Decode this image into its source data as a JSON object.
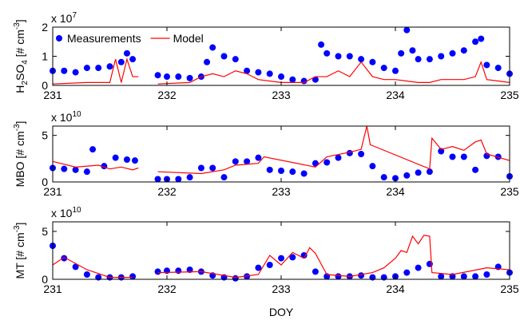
{
  "chart_data": [
    {
      "type": "line",
      "multiplier": {
        "base": "x 10",
        "exponent": "7"
      },
      "ylabel": [
        {
          "text": "H"
        },
        {
          "text": "2",
          "script": "sub"
        },
        {
          "text": "SO"
        },
        {
          "text": "4",
          "script": "sub"
        },
        {
          "text": " [# cm"
        },
        {
          "text": "-3",
          "script": "super"
        },
        {
          "text": "]"
        }
      ],
      "xlim": [
        231,
        235
      ],
      "xticks": [
        231,
        232,
        233,
        234,
        235
      ],
      "ylim": [
        0,
        2
      ],
      "yticks": [
        0,
        1,
        2
      ],
      "legend": "upper left",
      "series": [
        {
          "name": "Measurements",
          "color": "#0000ff",
          "style": "marker",
          "x": [
            231.0,
            231.1,
            231.2,
            231.3,
            231.4,
            231.5,
            231.6,
            231.65,
            231.7,
            231.92,
            232.0,
            232.1,
            232.2,
            232.3,
            232.35,
            232.4,
            232.5,
            232.6,
            232.7,
            232.8,
            232.9,
            233.0,
            233.1,
            233.2,
            233.3,
            233.35,
            233.4,
            233.5,
            233.6,
            233.7,
            233.8,
            233.9,
            234.0,
            234.05,
            234.1,
            234.15,
            234.2,
            234.3,
            234.4,
            234.5,
            234.6,
            234.7,
            234.75,
            234.8,
            234.9,
            235.0
          ],
          "values": [
            0.5,
            0.5,
            0.45,
            0.6,
            0.6,
            0.65,
            0.8,
            1.1,
            0.9,
            0.35,
            0.3,
            0.3,
            0.25,
            0.3,
            0.8,
            1.3,
            1.0,
            0.9,
            0.5,
            0.45,
            0.4,
            0.3,
            0.2,
            0.15,
            0.2,
            1.4,
            1.1,
            1.0,
            1.0,
            0.9,
            0.8,
            0.6,
            0.5,
            1.1,
            1.9,
            1.2,
            0.9,
            0.9,
            1.0,
            1.1,
            1.2,
            1.5,
            1.6,
            0.7,
            0.6,
            0.4
          ]
        },
        {
          "name": "Model",
          "color": "#ff0000",
          "style": "line",
          "x": [
            231.0,
            231.3,
            231.5,
            231.55,
            231.6,
            231.65,
            231.7,
            231.75,
            231.85,
            231.92,
            232.2,
            232.3,
            232.4,
            232.5,
            232.6,
            232.7,
            232.8,
            233.0,
            233.2,
            233.3,
            233.4,
            233.5,
            233.6,
            233.7,
            233.8,
            233.9,
            234.0,
            234.2,
            234.3,
            234.4,
            234.6,
            234.7,
            234.75,
            234.8,
            234.9,
            235.0
          ],
          "values": [
            0.05,
            0.1,
            0.1,
            0.9,
            0.1,
            0.9,
            0.3,
            0.3,
            null,
            0.05,
            0.1,
            0.3,
            0.4,
            0.3,
            0.5,
            0.4,
            0.2,
            0.1,
            0.1,
            0.3,
            0.3,
            0.5,
            0.3,
            0.8,
            0.3,
            0.2,
            0.2,
            0.1,
            0.1,
            0.2,
            0.2,
            0.3,
            0.8,
            0.2,
            0.15,
            0.1
          ]
        }
      ]
    },
    {
      "type": "line",
      "multiplier": {
        "base": "x 10",
        "exponent": "10"
      },
      "ylabel": [
        {
          "text": "MBO [# cm"
        },
        {
          "text": "-3",
          "script": "super"
        },
        {
          "text": "]"
        }
      ],
      "xlim": [
        231,
        235
      ],
      "xticks": [
        231,
        232,
        233,
        234,
        235
      ],
      "ylim": [
        0,
        6
      ],
      "yticks": [
        0,
        5
      ],
      "series": [
        {
          "color": "#0000ff",
          "style": "marker",
          "x": [
            231.0,
            231.1,
            231.2,
            231.3,
            231.35,
            231.45,
            231.55,
            231.65,
            231.72,
            231.92,
            232.0,
            232.1,
            232.2,
            232.3,
            232.4,
            232.5,
            232.6,
            232.7,
            232.8,
            232.9,
            233.0,
            233.1,
            233.2,
            233.3,
            233.4,
            233.5,
            233.6,
            233.7,
            233.8,
            233.9,
            234.0,
            234.1,
            234.2,
            234.3,
            234.4,
            234.5,
            234.6,
            234.7,
            234.8,
            234.9,
            235.0
          ],
          "values": [
            1.5,
            1.4,
            1.3,
            1.1,
            3.5,
            1.7,
            2.6,
            2.4,
            2.3,
            0.3,
            0.3,
            0.3,
            0.5,
            1.5,
            1.5,
            0.5,
            2.2,
            2.2,
            2.6,
            1.3,
            1.2,
            1.1,
            0.9,
            2.0,
            2.1,
            2.6,
            3.1,
            3.0,
            1.7,
            0.5,
            0.4,
            0.7,
            1.0,
            1.1,
            3.3,
            2.7,
            2.7,
            1.3,
            2.8,
            2.7,
            0.6
          ]
        },
        {
          "color": "#ff0000",
          "style": "line",
          "x": [
            231.0,
            231.2,
            231.4,
            231.5,
            231.6,
            231.7,
            231.75,
            231.85,
            231.92,
            232.3,
            232.5,
            232.6,
            232.8,
            232.85,
            233.3,
            233.4,
            233.6,
            233.7,
            233.75,
            233.78,
            233.8,
            234.3,
            234.32,
            234.4,
            234.5,
            234.6,
            234.7,
            234.75,
            234.8,
            235.0
          ],
          "values": [
            2.2,
            1.6,
            1.8,
            1.4,
            1.6,
            1.3,
            1.5,
            null,
            1.1,
            0.9,
            1.3,
            1.8,
            2.0,
            2.7,
            1.6,
            2.7,
            3.2,
            3.5,
            6.0,
            4.0,
            3.9,
            1.4,
            4.7,
            3.5,
            3.8,
            3.4,
            4.3,
            4.5,
            3.0,
            2.3
          ]
        }
      ]
    },
    {
      "type": "line",
      "multiplier": {
        "base": "x 10",
        "exponent": "10"
      },
      "ylabel": [
        {
          "text": "MT [# cm"
        },
        {
          "text": "-3",
          "script": "super"
        },
        {
          "text": "]"
        }
      ],
      "xlabel": "DOY",
      "xlim": [
        231,
        235
      ],
      "xticks": [
        231,
        232,
        233,
        234,
        235
      ],
      "ylim": [
        0,
        6
      ],
      "yticks": [
        0,
        5
      ],
      "series": [
        {
          "color": "#0000ff",
          "style": "marker",
          "x": [
            231.0,
            231.1,
            231.2,
            231.3,
            231.4,
            231.5,
            231.6,
            231.7,
            231.92,
            232.0,
            232.1,
            232.2,
            232.3,
            232.4,
            232.5,
            232.6,
            232.7,
            232.8,
            232.9,
            233.0,
            233.1,
            233.2,
            233.3,
            233.4,
            233.5,
            233.6,
            233.7,
            233.8,
            233.9,
            234.0,
            234.1,
            234.2,
            234.3,
            234.4,
            234.5,
            234.6,
            234.7,
            234.8,
            234.9,
            235.0
          ],
          "values": [
            3.5,
            2.2,
            1.3,
            0.5,
            0.2,
            0.2,
            0.2,
            0.3,
            0.8,
            0.9,
            0.9,
            1.0,
            0.8,
            0.4,
            0.2,
            0.1,
            0.3,
            1.2,
            1.5,
            2.2,
            2.3,
            2.5,
            0.8,
            0.3,
            0.3,
            0.3,
            0.4,
            0.2,
            0.2,
            0.3,
            0.7,
            1.2,
            1.6,
            0.3,
            0.3,
            0.3,
            0.3,
            0.5,
            1.3,
            0.7
          ]
        },
        {
          "color": "#ff0000",
          "style": "line",
          "x": [
            231.0,
            231.1,
            231.3,
            231.5,
            231.7,
            231.8,
            231.92,
            232.3,
            232.6,
            232.8,
            232.9,
            233.0,
            233.1,
            233.2,
            233.25,
            233.3,
            233.4,
            233.6,
            233.8,
            233.9,
            234.0,
            234.05,
            234.1,
            234.15,
            234.2,
            234.25,
            234.3,
            234.32,
            234.5,
            234.8,
            235.0
          ],
          "values": [
            1.5,
            2.3,
            1.0,
            0.2,
            0.2,
            null,
            0.7,
            0.8,
            0.2,
            0.5,
            2.5,
            1.5,
            2.8,
            2.2,
            3.3,
            2.7,
            0.5,
            0.3,
            0.7,
            1.2,
            2.2,
            3.0,
            2.8,
            4.5,
            3.7,
            4.6,
            4.5,
            0.7,
            0.5,
            1.2,
            1.0
          ]
        }
      ]
    }
  ]
}
